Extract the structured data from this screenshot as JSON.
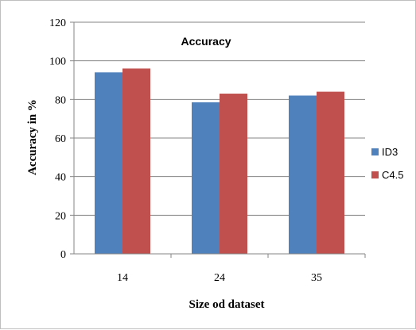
{
  "chart_data": {
    "type": "bar",
    "title": "Accuracy",
    "xlabel": "Size od dataset",
    "ylabel": "Accuracy in %",
    "categories": [
      "14",
      "24",
      "35"
    ],
    "series": [
      {
        "name": "ID3",
        "values": [
          94,
          78.5,
          82
        ],
        "color": "#4f81bd"
      },
      {
        "name": "C4.5",
        "values": [
          96,
          83,
          84
        ],
        "color": "#c0504d"
      }
    ],
    "ylim": [
      0,
      120
    ],
    "yticks": [
      "0",
      "20",
      "40",
      "60",
      "80",
      "100",
      "120"
    ],
    "grid": true,
    "legend_position": "right"
  }
}
